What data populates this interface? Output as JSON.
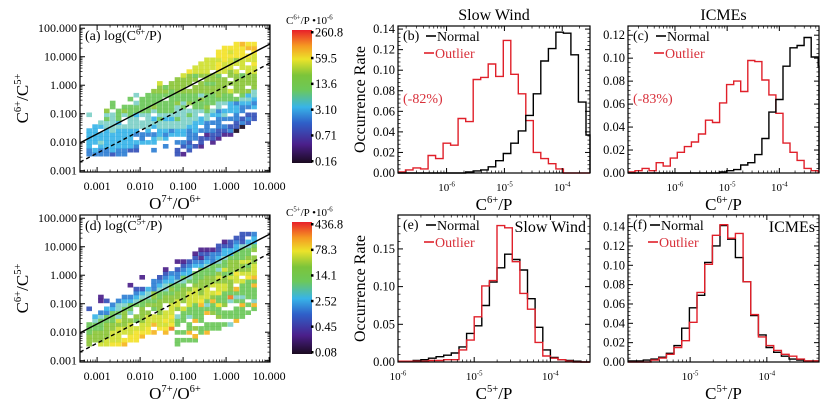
{
  "chart_data": [
    {
      "id": "a",
      "type": "heatmap",
      "panel_label": "(a)",
      "title": "log(C6+/P)",
      "title_parts": {
        "prefix": "log(C",
        "sup": "6+",
        "suffix": "/P)"
      },
      "xlabel": "O7+/O6+",
      "xlabel_parts": {
        "a": "O",
        "a_sup": "7+",
        "b": "/O",
        "b_sup": "6+"
      },
      "ylabel": "C6+/C5+",
      "ylabel_parts": {
        "a": "C",
        "a_sup": "6+",
        "b": "/C",
        "b_sup": "5+"
      },
      "xscale": "log",
      "yscale": "log",
      "xlim": [
        0.0004,
        10.5
      ],
      "ylim": [
        0.0009,
        130
      ],
      "xticks": [
        "0.001",
        "0.010",
        "0.100",
        "1.000",
        "10.000"
      ],
      "yticks": [
        "0.001",
        "0.010",
        "0.100",
        "1.000",
        "10.000",
        "100.000"
      ],
      "colorbar": {
        "label": "C6+/P •10-6",
        "label_parts": {
          "a": "C",
          "a_sup": "6+",
          "b": "/P •10",
          "b_sup": "-6"
        },
        "ticks": [
          "260.8",
          "59.5",
          "13.6",
          "3.10",
          "0.71",
          "0.16"
        ]
      },
      "lines": [
        {
          "style": "solid",
          "description": "fit line",
          "x": [
            0.0004,
            10.5
          ],
          "y": [
            0.0095,
            28
          ]
        },
        {
          "style": "dashed",
          "description": "threshold line",
          "x": [
            0.0004,
            10.5
          ],
          "y": [
            0.002,
            6
          ]
        }
      ]
    },
    {
      "id": "d",
      "type": "heatmap",
      "panel_label": "(d)",
      "title": "log(C5+/P)",
      "title_parts": {
        "prefix": "log(C",
        "sup": "5+",
        "suffix": "/P)"
      },
      "xlabel": "O7+/O6+",
      "xlabel_parts": {
        "a": "O",
        "a_sup": "7+",
        "b": "/O",
        "b_sup": "6+"
      },
      "ylabel": "C6+/C5+",
      "ylabel_parts": {
        "a": "C",
        "a_sup": "6+",
        "b": "/C",
        "b_sup": "5+"
      },
      "xscale": "log",
      "yscale": "log",
      "xlim": [
        0.0004,
        10.5
      ],
      "ylim": [
        0.0009,
        130
      ],
      "xticks": [
        "0.001",
        "0.010",
        "0.100",
        "1.000",
        "10.000"
      ],
      "yticks": [
        "0.001",
        "0.010",
        "0.100",
        "1.000",
        "10.000",
        "100.000"
      ],
      "colorbar": {
        "label": "C5+/P •10-6",
        "label_parts": {
          "a": "C",
          "a_sup": "5+",
          "b": "/P •10",
          "b_sup": "-6"
        },
        "ticks": [
          "436.8",
          "78.3",
          "14.1",
          "2.52",
          "0.45",
          "0.08"
        ]
      },
      "lines": [
        {
          "style": "solid",
          "description": "fit line",
          "x": [
            0.0004,
            10.5
          ],
          "y": [
            0.0095,
            28
          ]
        },
        {
          "style": "dashed",
          "description": "threshold line",
          "x": [
            0.0004,
            10.5
          ],
          "y": [
            0.002,
            6
          ]
        }
      ]
    },
    {
      "id": "b",
      "type": "step-histogram",
      "panel_label": "(b)",
      "title": "Slow Wind",
      "xlabel": "C6+/P",
      "xlabel_parts": {
        "a": "C",
        "a_sup": "6+",
        "b": "/P"
      },
      "ylabel": "Occurrence Rate",
      "xscale": "log",
      "xlim_log10": [
        -6.84,
        -3.52
      ],
      "ylim": [
        0,
        0.143
      ],
      "yticks": [
        "0.00",
        "0.02",
        "0.04",
        "0.06",
        "0.08",
        "0.10",
        "0.12",
        "0.14"
      ],
      "xticks": [
        {
          "base": "10",
          "exp": "-6"
        },
        {
          "base": "10",
          "exp": "-5"
        },
        {
          "base": "10",
          "exp": "-4"
        }
      ],
      "xtick_log10": [
        -6,
        -5,
        -4
      ],
      "annotation": "(-82%)",
      "legend": [
        {
          "name": "Normal",
          "color": "#000000"
        },
        {
          "name": "Outlier",
          "color": "#e0202a"
        }
      ],
      "bin_log10_start": -6.84,
      "bin_log10_width": 0.13,
      "series": [
        {
          "name": "Normal",
          "color": "#000000",
          "values": [
            0,
            0,
            0,
            0,
            0,
            0,
            0,
            0,
            0,
            0.001,
            0.002,
            0.003,
            0.006,
            0.012,
            0.019,
            0.029,
            0.041,
            0.056,
            0.077,
            0.109,
            0.121,
            0.137,
            0.136,
            0.115,
            0.069,
            0.037,
            0.012,
            0.004,
            0.001,
            0.001,
            0,
            0
          ]
        },
        {
          "name": "Outlier",
          "color": "#e0202a",
          "values": [
            0.001,
            0.003,
            0.005,
            0.004,
            0.017,
            0.014,
            0.029,
            0.027,
            0.053,
            0.05,
            0.091,
            0.093,
            0.106,
            0.094,
            0.129,
            0.096,
            0.077,
            0.051,
            0.02,
            0.014,
            0.009,
            0.004,
            0,
            0,
            0,
            0,
            0
          ]
        }
      ]
    },
    {
      "id": "c",
      "type": "step-histogram",
      "panel_label": "(c)",
      "title": "ICMEs",
      "xlabel": "C6+/P",
      "xlabel_parts": {
        "a": "C",
        "a_sup": "6+",
        "b": "/P"
      },
      "ylabel": "",
      "xscale": "log",
      "xlim_log10": [
        -6.9,
        -3.24
      ],
      "ylim": [
        0,
        0.128
      ],
      "yticks": [
        "0.00",
        "0.02",
        "0.04",
        "0.06",
        "0.08",
        "0.10",
        "0.12"
      ],
      "xticks": [
        {
          "base": "10",
          "exp": "-6"
        },
        {
          "base": "10",
          "exp": "-5"
        },
        {
          "base": "10",
          "exp": "-4"
        }
      ],
      "xtick_log10": [
        -6,
        -5,
        -4
      ],
      "annotation": "(-83%)",
      "legend": [
        {
          "name": "Normal",
          "color": "#000000"
        },
        {
          "name": "Outlier",
          "color": "#e0202a"
        }
      ],
      "bin_log10_start": -6.9,
      "bin_log10_width": 0.135,
      "series": [
        {
          "name": "Normal",
          "color": "#000000",
          "values": [
            0,
            0,
            0,
            0,
            0,
            0,
            0,
            0,
            0,
            0,
            0,
            0,
            0,
            0.001,
            0.002,
            0.003,
            0.007,
            0.009,
            0.016,
            0.03,
            0.053,
            0.064,
            0.093,
            0.109,
            0.111,
            0.118,
            0.101,
            0.093,
            0.073,
            0.049,
            0.026,
            0.015,
            0.008,
            0.003,
            0.004
          ]
        },
        {
          "name": "Outlier",
          "color": "#e0202a",
          "values": [
            0.001,
            0.002,
            0.004,
            0.002,
            0.009,
            0.006,
            0.013,
            0.018,
            0.023,
            0.027,
            0.034,
            0.046,
            0.044,
            0.061,
            0.077,
            0.08,
            0.071,
            0.098,
            0.097,
            0.081,
            0.068,
            0.052,
            0.026,
            0.018,
            0.011,
            0.004,
            0.002,
            0.001,
            0,
            0,
            0,
            0,
            0,
            0,
            0
          ]
        }
      ]
    },
    {
      "id": "e",
      "type": "step-histogram",
      "panel_label": "(e)",
      "title": "Slow Wind",
      "xlabel": "C5+/P",
      "xlabel_parts": {
        "a": "C",
        "a_sup": "5+",
        "b": "/P"
      },
      "ylabel": "Occurrence Rate",
      "xscale": "log",
      "xlim_log10": [
        -6.0,
        -3.48
      ],
      "ylim": [
        0,
        0.195
      ],
      "yticks": [
        "0.00",
        "0.05",
        "0.10",
        "0.15"
      ],
      "ytick_values": [
        0,
        0.05,
        0.1,
        0.15
      ],
      "xticks": [
        {
          "base": "10",
          "exp": "-6"
        },
        {
          "base": "10",
          "exp": "-5"
        },
        {
          "base": "10",
          "exp": "-4"
        }
      ],
      "xtick_log10": [
        -6,
        -5,
        -4
      ],
      "legend": [
        {
          "name": "Normal",
          "color": "#000000"
        },
        {
          "name": "Outlier",
          "color": "#e0202a"
        }
      ],
      "bin_log10_start": -6.0,
      "bin_log10_width": 0.1,
      "series": [
        {
          "name": "Normal",
          "color": "#000000",
          "values": [
            0.001,
            0.001,
            0.002,
            0.003,
            0.005,
            0.007,
            0.009,
            0.012,
            0.02,
            0.038,
            0.048,
            0.075,
            0.106,
            0.125,
            0.143,
            0.136,
            0.122,
            0.084,
            0.046,
            0.016,
            0.006,
            0.003,
            0.002,
            0.001,
            0,
            0
          ]
        },
        {
          "name": "Outlier",
          "color": "#e0202a",
          "values": [
            0.001,
            0.001,
            0.001,
            0.001,
            0.002,
            0.002,
            0.003,
            0.003,
            0.016,
            0.029,
            0.06,
            0.101,
            0.108,
            0.181,
            0.178,
            0.133,
            0.091,
            0.07,
            0.026,
            0.008,
            0.005,
            0.003,
            0.001,
            0,
            0,
            0
          ]
        }
      ]
    },
    {
      "id": "f",
      "type": "step-histogram",
      "panel_label": "(f)",
      "title": "ICMEs",
      "xlabel": "C5+/P",
      "xlabel_parts": {
        "a": "C",
        "a_sup": "5+",
        "b": "/P"
      },
      "ylabel": "",
      "xscale": "log",
      "xlim_log10": [
        -5.81,
        -3.32
      ],
      "ylim": [
        0,
        0.152
      ],
      "yticks": [
        "0.00",
        "0.02",
        "0.04",
        "0.06",
        "0.08",
        "0.10",
        "0.12",
        "0.14"
      ],
      "xticks": [
        {
          "base": "10",
          "exp": "-5"
        },
        {
          "base": "10",
          "exp": "-4"
        }
      ],
      "xtick_log10": [
        -5,
        -4
      ],
      "legend": [
        {
          "name": "Normal",
          "color": "#000000"
        },
        {
          "name": "Outlier",
          "color": "#e0202a"
        }
      ],
      "bin_log10_start": -5.81,
      "bin_log10_width": 0.1,
      "series": [
        {
          "name": "Normal",
          "color": "#000000",
          "values": [
            0.001,
            0.001,
            0.002,
            0.003,
            0.005,
            0.009,
            0.017,
            0.035,
            0.056,
            0.069,
            0.103,
            0.12,
            0.141,
            0.127,
            0.108,
            0.083,
            0.048,
            0.028,
            0.015,
            0.01,
            0.006,
            0.003,
            0.002,
            0.001,
            0.001
          ]
        },
        {
          "name": "Outlier",
          "color": "#e0202a",
          "values": [
            0,
            0,
            0,
            0.002,
            0.004,
            0.008,
            0.015,
            0.022,
            0.041,
            0.072,
            0.101,
            0.131,
            0.142,
            0.128,
            0.133,
            0.083,
            0.049,
            0.026,
            0.017,
            0.012,
            0.008,
            0.006,
            0.003,
            0.001,
            0.001
          ]
        }
      ]
    }
  ]
}
